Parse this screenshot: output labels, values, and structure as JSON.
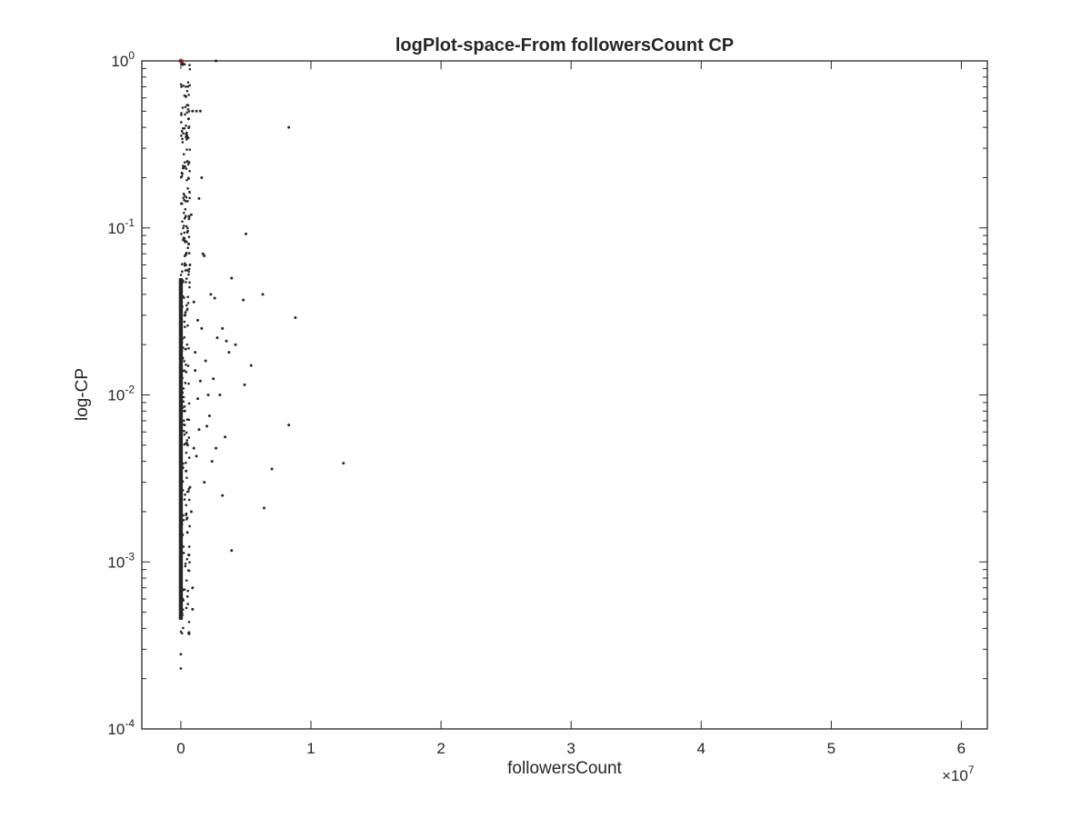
{
  "chart_data": {
    "type": "scatter",
    "title": "logPlot-space-From followersCount CP",
    "xlabel": "followersCount",
    "ylabel": "log-CP",
    "x_multiplier": "×10^7",
    "x_multiplier_base": "×10",
    "x_multiplier_exp": "7",
    "xlim": [
      -3000000,
      62000000
    ],
    "ylim": [
      0.0001,
      1
    ],
    "y_scale": "log",
    "grid": false,
    "x_ticks": [
      0,
      10000000,
      20000000,
      30000000,
      40000000,
      50000000,
      60000000
    ],
    "x_tick_labels": [
      "0",
      "1",
      "2",
      "3",
      "4",
      "5",
      "6"
    ],
    "y_ticks": [
      0.0001,
      0.001,
      0.01,
      0.1,
      1
    ],
    "y_tick_labels": [
      {
        "base": "10",
        "exp": "-4"
      },
      {
        "base": "10",
        "exp": "-3"
      },
      {
        "base": "10",
        "exp": "-2"
      },
      {
        "base": "10",
        "exp": "-1"
      },
      {
        "base": "10",
        "exp": "0"
      }
    ],
    "marker_color": "#262626",
    "highlight_color": "#e0252a",
    "highlight_points": [
      [
        0,
        1.0
      ],
      [
        20000,
        1.0
      ]
    ],
    "series": [
      {
        "values": [
          [
            2700000,
            1.0
          ],
          [
            8300000,
            0.4
          ],
          [
            5000000,
            0.092
          ],
          [
            6300000,
            0.04
          ],
          [
            8800000,
            0.029
          ],
          [
            3900000,
            0.05
          ],
          [
            4800000,
            0.037
          ],
          [
            1200000,
            0.5
          ],
          [
            1500000,
            0.5
          ],
          [
            900000,
            0.5
          ],
          [
            1700000,
            0.07
          ],
          [
            1800000,
            0.068
          ],
          [
            1600000,
            0.2
          ],
          [
            1400000,
            0.15
          ],
          [
            2300000,
            0.04
          ],
          [
            2600000,
            0.038
          ],
          [
            3200000,
            0.025
          ],
          [
            3500000,
            0.021
          ],
          [
            4200000,
            0.02
          ],
          [
            3700000,
            0.018
          ],
          [
            2800000,
            0.022
          ],
          [
            5400000,
            0.015
          ],
          [
            4900000,
            0.0115
          ],
          [
            2500000,
            0.0125
          ],
          [
            3000000,
            0.01
          ],
          [
            2200000,
            0.0075
          ],
          [
            2000000,
            0.0065
          ],
          [
            8300000,
            0.0066
          ],
          [
            3400000,
            0.0056
          ],
          [
            2700000,
            0.0048
          ],
          [
            2400000,
            0.004
          ],
          [
            12500000,
            0.0039
          ],
          [
            7000000,
            0.0036
          ],
          [
            6400000,
            0.0021
          ],
          [
            3200000,
            0.0025
          ],
          [
            1800000,
            0.003
          ],
          [
            3900000,
            0.00117
          ],
          [
            800000,
            0.002
          ],
          [
            600000,
            0.0011
          ],
          [
            900000,
            0.0007
          ],
          [
            900000,
            0.00052
          ],
          [
            1000000,
            0.0048
          ],
          [
            1300000,
            0.0095
          ],
          [
            1500000,
            0.0121
          ],
          [
            1100000,
            0.014
          ],
          [
            2100000,
            0.01
          ],
          [
            1900000,
            0.016
          ],
          [
            1300000,
            0.028
          ],
          [
            1000000,
            0.036
          ],
          [
            1600000,
            0.025
          ],
          [
            700000,
            0.06
          ],
          [
            600000,
            0.08
          ],
          [
            800000,
            0.12
          ],
          [
            500000,
            0.25
          ],
          [
            400000,
            0.35
          ],
          [
            600000,
            0.45
          ],
          [
            300000,
            0.03
          ],
          [
            400000,
            0.0035
          ],
          [
            500000,
            0.0015
          ],
          [
            1200000,
            0.0043
          ],
          [
            1400000,
            0.0062
          ],
          [
            700000,
            0.0028
          ],
          [
            300000,
            0.008
          ],
          [
            1100000,
            0.018
          ]
        ]
      }
    ]
  }
}
